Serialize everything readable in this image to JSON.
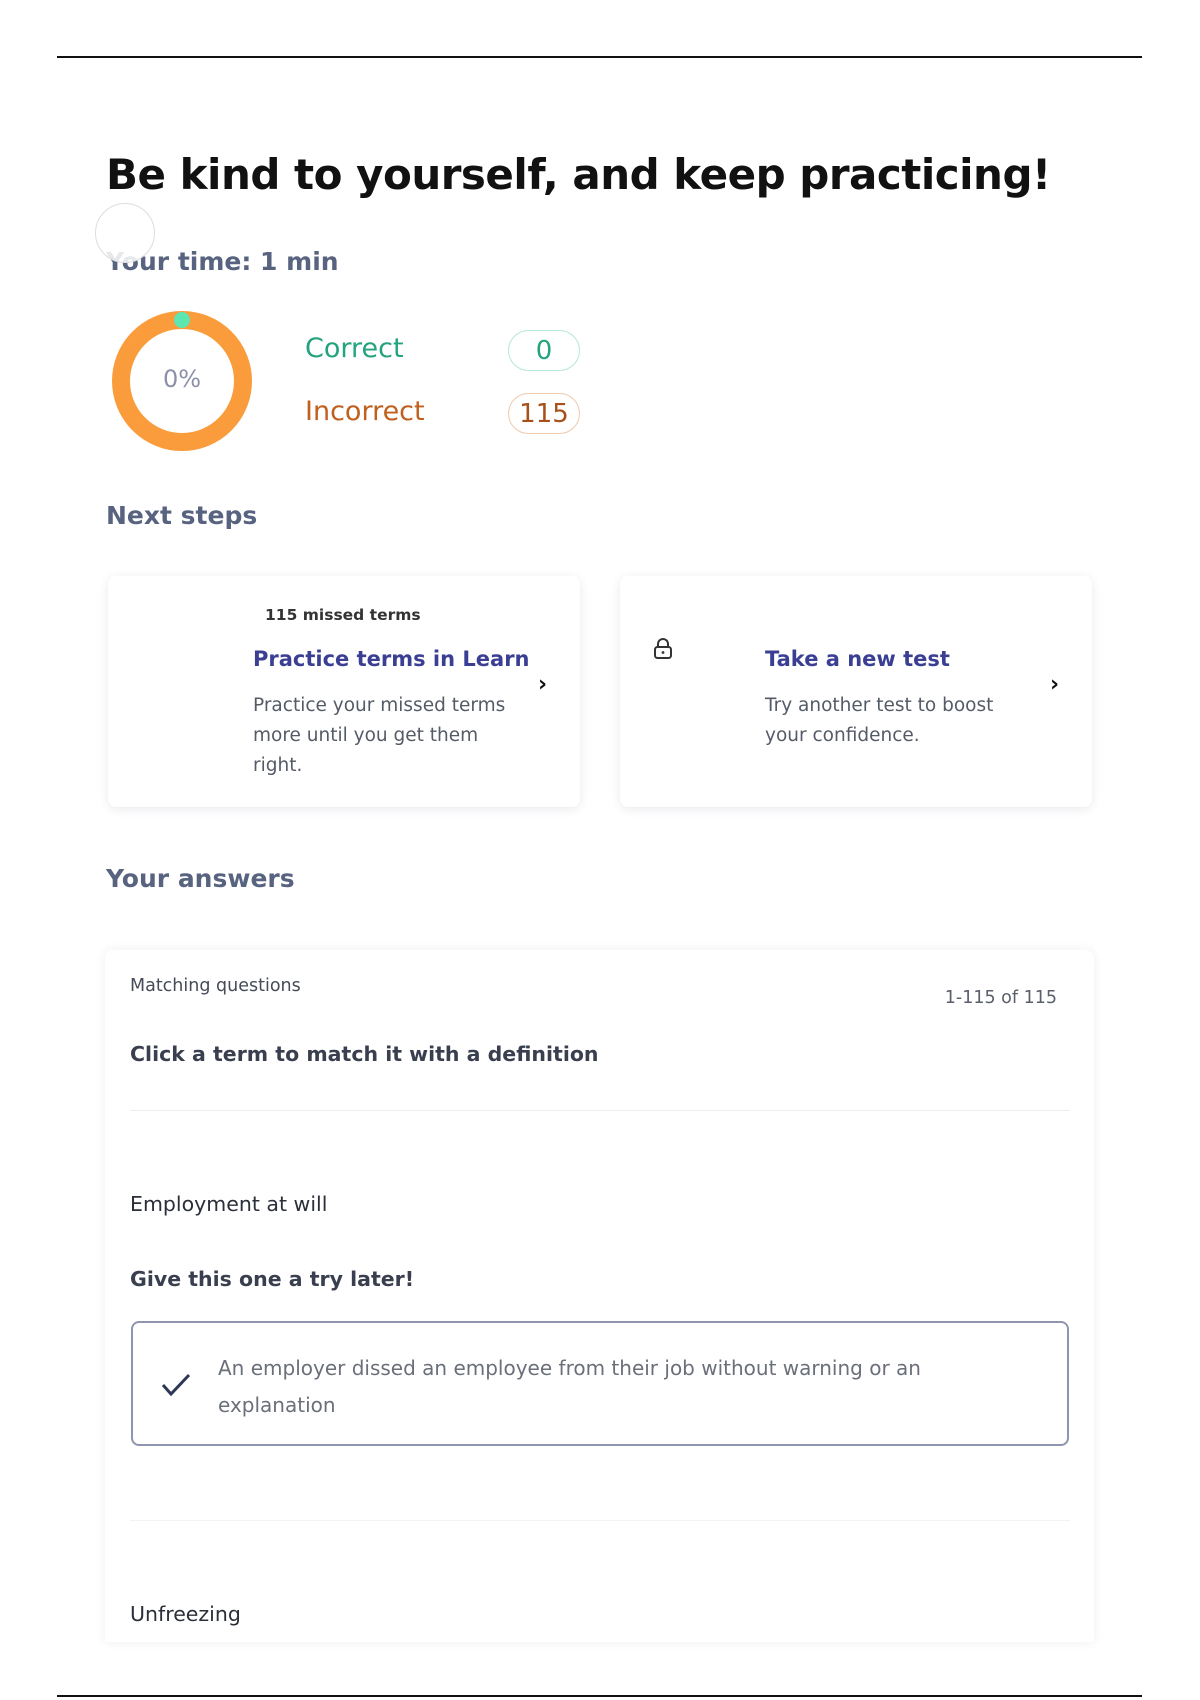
{
  "header": {
    "title": "Be kind to yourself, and keep practicing!",
    "time": "Your time: 1 min"
  },
  "results": {
    "percent": "0%",
    "percent_value": 0,
    "correct_label": "Correct",
    "correct_count": "0",
    "incorrect_label": "Incorrect",
    "incorrect_count": "115",
    "colors": {
      "correct": "#23a37e",
      "incorrect": "#c0601f",
      "ring": "#fa9c3c",
      "ring_marker": "#5ee6b0"
    }
  },
  "next_steps": {
    "heading": "Next steps",
    "cards": [
      {
        "badge": "115 missed terms",
        "title": "Practice terms in Learn",
        "description": "Practice your missed terms more until you get them right.",
        "icon": "chevron-right-icon"
      },
      {
        "title": "Take a new test",
        "description": "Try another test to boost your confidence.",
        "icon": "lock-icon"
      }
    ]
  },
  "answers": {
    "heading": "Your answers",
    "section_label": "Matching questions",
    "range": "1-115 of 115",
    "instruction": "Click a term to match it with a definition",
    "items": [
      {
        "term": "Employment at will",
        "feedback": "Give this one a try later!",
        "answer": "An employer dissed an employee from their job without warning or an explanation"
      },
      {
        "term": "Unfreezing"
      }
    ]
  }
}
